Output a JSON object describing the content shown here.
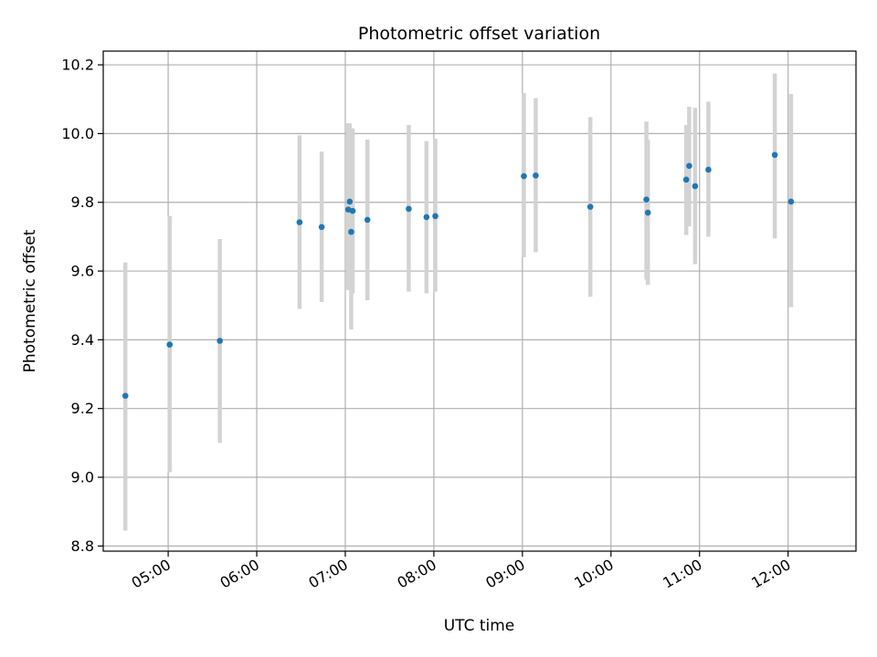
{
  "chart_data": {
    "type": "scatter",
    "title": "Photometric offset variation",
    "xlabel": "UTC time",
    "ylabel": "Photometric offset",
    "xlim": [
      "04:16",
      "12:46"
    ],
    "ylim": [
      8.785,
      10.24
    ],
    "grid": true,
    "x_ticks": [
      "05:00",
      "06:00",
      "07:00",
      "08:00",
      "09:00",
      "10:00",
      "11:00",
      "12:00"
    ],
    "y_ticks": [
      8.8,
      9.0,
      9.2,
      9.4,
      9.6,
      9.8,
      10.0,
      10.2
    ],
    "y_tick_labels": [
      "8.8",
      "9.0",
      "9.2",
      "9.4",
      "9.6",
      "9.8",
      "10.0",
      "10.2"
    ],
    "error_bar_color": "#d3d3d3",
    "point_color": "#1f77b4",
    "series": [
      {
        "x": [
          "04:31",
          "05:01",
          "05:35",
          "06:29",
          "06:44",
          "07:02",
          "07:03",
          "07:04",
          "07:05",
          "07:15",
          "07:43",
          "07:55",
          "08:01",
          "09:01",
          "09:09",
          "09:46",
          "10:24",
          "10:25",
          "10:51",
          "10:53",
          "10:57",
          "11:06",
          "11:51",
          "12:02"
        ],
        "y": [
          9.237,
          9.386,
          9.397,
          9.742,
          9.728,
          9.779,
          9.802,
          9.714,
          9.775,
          9.749,
          9.781,
          9.757,
          9.76,
          9.876,
          9.878,
          9.787,
          9.808,
          9.77,
          9.866,
          9.906,
          9.847,
          9.895,
          9.938,
          9.802
        ],
        "yerr_low": [
          8.845,
          9.015,
          9.1,
          9.49,
          9.51,
          9.545,
          9.56,
          9.43,
          9.535,
          9.515,
          9.54,
          9.535,
          9.54,
          9.64,
          9.655,
          9.525,
          9.575,
          9.56,
          9.705,
          9.73,
          9.62,
          9.7,
          9.695,
          9.495
        ],
        "yerr_high": [
          9.625,
          9.76,
          9.693,
          9.995,
          9.948,
          10.03,
          10.03,
          10.015,
          10.015,
          9.982,
          10.025,
          9.978,
          9.985,
          10.118,
          10.103,
          10.048,
          10.035,
          9.982,
          10.025,
          10.078,
          10.075,
          10.093,
          10.175,
          10.115
        ]
      }
    ]
  }
}
